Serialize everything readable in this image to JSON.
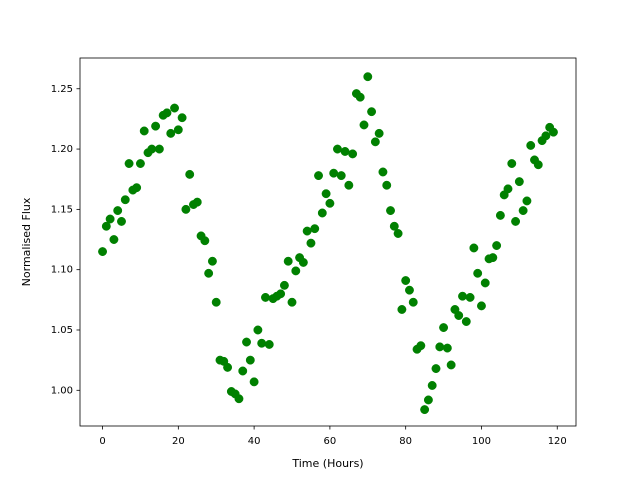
{
  "chart_data": {
    "type": "scatter",
    "xlabel": "Time (Hours)",
    "ylabel": "Normalised Flux",
    "x": [
      0,
      1,
      2,
      3,
      4,
      5,
      6,
      7,
      8,
      9,
      10,
      11,
      12,
      13,
      14,
      15,
      16,
      17,
      18,
      19,
      20,
      21,
      22,
      23,
      24,
      25,
      26,
      27,
      28,
      29,
      30,
      31,
      32,
      33,
      34,
      35,
      36,
      37,
      38,
      39,
      40,
      41,
      42,
      43,
      44,
      45,
      46,
      47,
      48,
      49,
      50,
      51,
      52,
      53,
      54,
      55,
      56,
      57,
      58,
      59,
      60,
      61,
      62,
      63,
      64,
      65,
      66,
      67,
      68,
      69,
      70,
      71,
      72,
      73,
      74,
      75,
      76,
      77,
      78,
      79,
      80,
      81,
      82,
      83,
      84,
      85,
      86,
      87,
      88,
      89,
      90,
      91,
      92,
      93,
      94,
      95,
      96,
      97,
      98,
      99,
      100,
      101,
      102,
      103,
      104,
      105,
      106,
      107,
      108,
      109,
      110,
      111,
      112,
      113,
      114,
      115,
      116,
      117,
      118,
      119
    ],
    "series": [
      {
        "color": "#008000",
        "values": [
          1.115,
          1.136,
          1.142,
          1.125,
          1.149,
          1.14,
          1.158,
          1.188,
          1.166,
          1.168,
          1.188,
          1.215,
          1.197,
          1.2,
          1.219,
          1.2,
          1.228,
          1.23,
          1.213,
          1.234,
          1.216,
          1.226,
          1.15,
          1.179,
          1.154,
          1.156,
          1.128,
          1.124,
          1.097,
          1.107,
          1.073,
          1.025,
          1.024,
          1.019,
          0.999,
          0.997,
          0.993,
          1.016,
          1.04,
          1.025,
          1.007,
          1.05,
          1.039,
          1.077,
          1.038,
          1.076,
          1.078,
          1.08,
          1.087,
          1.107,
          1.073,
          1.099,
          1.11,
          1.106,
          1.132,
          1.122,
          1.134,
          1.178,
          1.147,
          1.163,
          1.155,
          1.18,
          1.2,
          1.178,
          1.198,
          1.17,
          1.196,
          1.246,
          1.243,
          1.22,
          1.26,
          1.231,
          1.206,
          1.213,
          1.181,
          1.17,
          1.149,
          1.136,
          1.13,
          1.067,
          1.091,
          1.083,
          1.073,
          1.034,
          1.037,
          0.984,
          0.992,
          1.004,
          1.018,
          1.036,
          1.052,
          1.035,
          1.021,
          1.067,
          1.062,
          1.078,
          1.057,
          1.077,
          1.118,
          1.097,
          1.07,
          1.089,
          1.109,
          1.11,
          1.12,
          1.145,
          1.162,
          1.167,
          1.188,
          1.14,
          1.173,
          1.149,
          1.157,
          1.203,
          1.191,
          1.187,
          1.207,
          1.211,
          1.218,
          1.214
        ]
      }
    ],
    "xlim": [
      -5.95,
      124.95
    ],
    "xticks": [
      0,
      20,
      40,
      60,
      80,
      100,
      120
    ],
    "ylim": [
      0.9704,
      1.2755
    ],
    "yticks": [
      {
        "value": 1.0,
        "label": "1.00"
      },
      1.05,
      {
        "value": 1.1,
        "label": "1.10"
      },
      1.15,
      {
        "value": 1.2,
        "label": "1.20"
      },
      1.25
    ],
    "grid": false
  }
}
